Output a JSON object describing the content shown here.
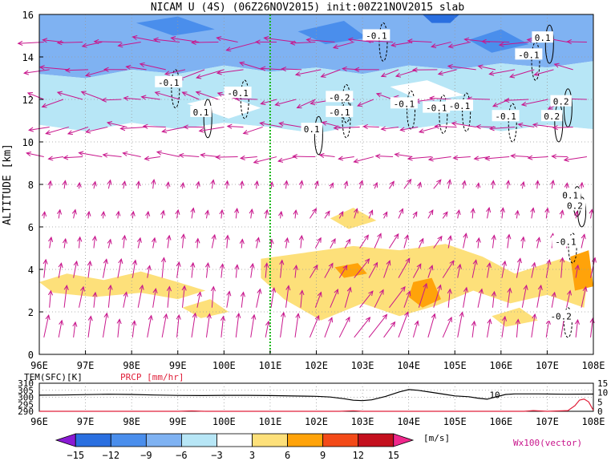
{
  "chart_data": {
    "type": "heatmap",
    "title": "NICAM U (4S) (06Z26NOV2015) init:00Z21NOV2015 slab",
    "ylabel": "ALTITUDE [km]",
    "xlabel": "",
    "x_ticks": [
      "96E",
      "97E",
      "98E",
      "99E",
      "100E",
      "101E",
      "102E",
      "103E",
      "104E",
      "105E",
      "106E",
      "107E",
      "108E"
    ],
    "y_ticks": [
      "0",
      "2",
      "4",
      "6",
      "8",
      "10",
      "12",
      "14",
      "16"
    ],
    "xlim": [
      96,
      108
    ],
    "ylim": [
      0,
      16
    ],
    "marker_line_lon": 101,
    "contour_labels": [
      {
        "text": "-0.1",
        "lon": 98.8,
        "alt": 12.8
      },
      {
        "text": "-0.1",
        "lon": 100.3,
        "alt": 12.3
      },
      {
        "text": "0.1",
        "lon": 99.5,
        "alt": 11.4
      },
      {
        "text": "0.1",
        "lon": 101.9,
        "alt": 10.6
      },
      {
        "text": "-0.2",
        "lon": 102.5,
        "alt": 12.1
      },
      {
        "text": "-0.1",
        "lon": 102.5,
        "alt": 11.4
      },
      {
        "text": "-0.1",
        "lon": 103.3,
        "alt": 15.0
      },
      {
        "text": "-0.1",
        "lon": 103.9,
        "alt": 11.8
      },
      {
        "text": "-0.1",
        "lon": 104.6,
        "alt": 11.6
      },
      {
        "text": "-0.1",
        "lon": 105.1,
        "alt": 11.7
      },
      {
        "text": "-0.1",
        "lon": 106.1,
        "alt": 11.2
      },
      {
        "text": "-0.1",
        "lon": 106.6,
        "alt": 14.1
      },
      {
        "text": "0.1",
        "lon": 106.9,
        "alt": 14.9
      },
      {
        "text": "0.2",
        "lon": 107.3,
        "alt": 11.9
      },
      {
        "text": "0.2",
        "lon": 107.1,
        "alt": 11.2
      },
      {
        "text": "0.1",
        "lon": 107.5,
        "alt": 7.5
      },
      {
        "text": "0.2",
        "lon": 107.6,
        "alt": 7.0
      },
      {
        "text": "-0.1",
        "lon": 107.4,
        "alt": 5.3
      },
      {
        "text": "-0.2",
        "lon": 107.3,
        "alt": 1.8
      }
    ],
    "colorbar": {
      "levels": [
        -15,
        -12,
        -9,
        -6,
        -3,
        3,
        6,
        9,
        12,
        15
      ],
      "colors": [
        "#8a1ad4",
        "#2a6fe0",
        "#4a8eec",
        "#7fb2f2",
        "#b7e6f6",
        "#ffffff",
        "#fde07a",
        "#ffa30a",
        "#f34a18",
        "#c4101e",
        "#f0288c"
      ],
      "unit": "[m/s]",
      "vector_label": "Wx100(vector)"
    },
    "fields": [
      {
        "value": -9,
        "polygons": [
          [
            [
              96,
              16
            ],
            [
              108,
              16
            ],
            [
              108,
              13.8
            ],
            [
              107,
              13.5
            ],
            [
              106,
              13.7
            ],
            [
              105,
              13.4
            ],
            [
              104,
              13.6
            ],
            [
              103,
              13.2
            ],
            [
              102,
              13.5
            ],
            [
              101,
              13.3
            ],
            [
              100,
              13.6
            ],
            [
              99,
              13.2
            ],
            [
              98,
              13.4
            ],
            [
              97,
              13.0
            ],
            [
              96,
              13.2
            ]
          ]
        ]
      },
      {
        "value": -6,
        "polygons": [
          [
            [
              96,
              13.2
            ],
            [
              97,
              13.0
            ],
            [
              98,
              13.4
            ],
            [
              99,
              13.2
            ],
            [
              100,
              13.6
            ],
            [
              101,
              13.3
            ],
            [
              102,
              13.5
            ],
            [
              103,
              13.2
            ],
            [
              104,
              13.6
            ],
            [
              105,
              13.4
            ],
            [
              106,
              13.7
            ],
            [
              107,
              13.5
            ],
            [
              108,
              13.8
            ],
            [
              108,
              10.6
            ],
            [
              107,
              10.8
            ],
            [
              106,
              10.5
            ],
            [
              105,
              10.9
            ],
            [
              104,
              10.6
            ],
            [
              103,
              10.8
            ],
            [
              102,
              10.4
            ],
            [
              101,
              10.7
            ],
            [
              100,
              10.9
            ],
            [
              99,
              10.6
            ],
            [
              98,
              10.9
            ],
            [
              97,
              10.5
            ],
            [
              96,
              10.8
            ]
          ]
        ]
      },
      {
        "value": -3,
        "polygons": [
          [
            [
              96,
              10.8
            ],
            [
              97,
              10.5
            ],
            [
              98,
              10.9
            ],
            [
              99,
              10.6
            ],
            [
              100,
              10.9
            ],
            [
              101,
              10.7
            ],
            [
              102,
              10.4
            ],
            [
              103,
              10.8
            ],
            [
              104,
              10.6
            ],
            [
              105,
              10.9
            ],
            [
              106,
              10.5
            ],
            [
              107,
              10.8
            ],
            [
              108,
              10.6
            ],
            [
              108,
              8.2
            ],
            [
              107,
              8.4
            ],
            [
              106,
              8.0
            ],
            [
              105,
              8.6
            ],
            [
              104,
              8.2
            ],
            [
              103,
              8.5
            ],
            [
              102,
              8.3
            ],
            [
              101,
              8.6
            ],
            [
              100,
              8.3
            ],
            [
              99,
              8.7
            ],
            [
              98,
              8.4
            ],
            [
              97,
              8.6
            ],
            [
              96,
              8.3
            ]
          ],
          [
            [
              99.2,
              11.8
            ],
            [
              100.0,
              12.2
            ],
            [
              100.8,
              11.6
            ],
            [
              100.1,
              11.1
            ]
          ],
          [
            [
              103.6,
              12.6
            ],
            [
              104.4,
              12.9
            ],
            [
              105.2,
              12.2
            ],
            [
              104.3,
              11.9
            ]
          ]
        ]
      },
      {
        "value": -12,
        "polygons": [
          [
            [
              98.1,
              15.6
            ],
            [
              99.0,
              15.9
            ],
            [
              99.8,
              15.3
            ],
            [
              98.9,
              15.0
            ]
          ],
          [
            [
              101.6,
              15.2
            ],
            [
              102.6,
              15.7
            ],
            [
              103.1,
              14.9
            ],
            [
              102.2,
              14.6
            ]
          ],
          [
            [
              105.3,
              14.8
            ],
            [
              106.0,
              15.3
            ],
            [
              106.6,
              14.6
            ],
            [
              105.8,
              14.2
            ]
          ]
        ]
      },
      {
        "value": -15,
        "polygons": [
          [
            [
              104.3,
              16
            ],
            [
              105.1,
              16
            ],
            [
              104.9,
              15.6
            ],
            [
              104.5,
              15.6
            ]
          ]
        ]
      },
      {
        "value": 3,
        "polygons": [
          [
            [
              96,
              3.4
            ],
            [
              96.6,
              3.8
            ],
            [
              97.4,
              3.5
            ],
            [
              98.2,
              3.9
            ],
            [
              99,
              3.4
            ],
            [
              99.6,
              3.0
            ],
            [
              99.0,
              2.6
            ],
            [
              98.2,
              2.9
            ],
            [
              97.2,
              2.7
            ],
            [
              96.3,
              2.9
            ]
          ],
          [
            [
              100.8,
              4.5
            ],
            [
              101.8,
              4.8
            ],
            [
              102.8,
              5.1
            ],
            [
              103.8,
              4.9
            ],
            [
              104.8,
              5.2
            ],
            [
              105.6,
              4.6
            ],
            [
              106.3,
              3.8
            ],
            [
              107.3,
              4.5
            ],
            [
              107.9,
              4.0
            ],
            [
              107.8,
              2.2
            ],
            [
              107.0,
              2.8
            ],
            [
              106.2,
              2.4
            ],
            [
              105.4,
              3.0
            ],
            [
              104.6,
              2.3
            ],
            [
              103.8,
              1.8
            ],
            [
              103.0,
              2.4
            ],
            [
              102.1,
              1.6
            ],
            [
              101.3,
              2.6
            ],
            [
              100.8,
              3.6
            ]
          ],
          [
            [
              102.3,
              6.4
            ],
            [
              102.8,
              6.9
            ],
            [
              103.3,
              6.3
            ],
            [
              102.7,
              5.9
            ]
          ],
          [
            [
              99.1,
              2.2
            ],
            [
              99.7,
              2.6
            ],
            [
              100.1,
              2.0
            ],
            [
              99.5,
              1.7
            ]
          ],
          [
            [
              105.8,
              1.8
            ],
            [
              106.4,
              2.2
            ],
            [
              106.8,
              1.6
            ],
            [
              106.1,
              1.3
            ]
          ]
        ]
      },
      {
        "value": 6,
        "polygons": [
          [
            [
              104.1,
              3.4
            ],
            [
              104.5,
              3.6
            ],
            [
              104.7,
              2.6
            ],
            [
              104.3,
              2.2
            ],
            [
              104.0,
              2.7
            ]
          ],
          [
            [
              102.4,
              4.1
            ],
            [
              102.9,
              4.3
            ],
            [
              103.1,
              3.8
            ],
            [
              102.6,
              3.6
            ]
          ],
          [
            [
              107.5,
              4.6
            ],
            [
              107.9,
              4.9
            ],
            [
              108,
              3.2
            ],
            [
              107.6,
              3.0
            ]
          ]
        ]
      }
    ],
    "rows": [
      {
        "alt": 14.7,
        "dir": -1,
        "mag": 1.0,
        "tilt": 0.25
      },
      {
        "alt": 13.4,
        "dir": -1,
        "mag": 0.9,
        "tilt": 0.35
      },
      {
        "alt": 12.0,
        "dir": -1,
        "mag": 0.85,
        "tilt": 0.45
      },
      {
        "alt": 10.7,
        "dir": -1,
        "mag": 0.8,
        "tilt": 0.3
      },
      {
        "alt": 9.3,
        "dir": -1,
        "mag": 0.75,
        "tilt": 0.25
      },
      {
        "alt": 7.8,
        "dir": 0,
        "mag": 0.35,
        "tilt": 1
      },
      {
        "alt": 6.4,
        "dir": 0,
        "mag": 0.4,
        "tilt": 1
      },
      {
        "alt": 5.0,
        "dir": 0,
        "mag": 0.55,
        "tilt": 1
      },
      {
        "alt": 3.6,
        "dir": 0,
        "mag": 0.75,
        "tilt": 1
      },
      {
        "alt": 2.2,
        "dir": 0,
        "mag": 0.9,
        "tilt": 1
      },
      {
        "alt": 0.8,
        "dir": 0,
        "mag": 0.95,
        "tilt": 1
      }
    ],
    "bottom_panel": {
      "tem_label": "TEM(SFC)[K]",
      "prcp_label": "PRCP [mm/hr]",
      "left_ticks": [
        "310",
        "305",
        "300",
        "295",
        "290"
      ],
      "right_ticks": [
        "15",
        "10",
        "5",
        "0"
      ],
      "tem_annotation": "10",
      "tem_series": [
        [
          96.0,
          301.5
        ],
        [
          96.5,
          301.6
        ],
        [
          97.0,
          301.9
        ],
        [
          97.5,
          302.2
        ],
        [
          98.0,
          302.0
        ],
        [
          98.5,
          301.6
        ],
        [
          99.0,
          301.3
        ],
        [
          99.5,
          301.2
        ],
        [
          100.0,
          301.4
        ],
        [
          100.5,
          301.4
        ],
        [
          101.0,
          301.2
        ],
        [
          101.5,
          300.9
        ],
        [
          102.0,
          300.7
        ],
        [
          102.3,
          300.2
        ],
        [
          102.6,
          299.0
        ],
        [
          102.8,
          297.9
        ],
        [
          103.0,
          297.6
        ],
        [
          103.2,
          298.2
        ],
        [
          103.5,
          300.6
        ],
        [
          103.8,
          303.8
        ],
        [
          104.0,
          305.5
        ],
        [
          104.2,
          305.0
        ],
        [
          104.5,
          303.5
        ],
        [
          104.8,
          302.0
        ],
        [
          105.0,
          301.0
        ],
        [
          105.3,
          300.4
        ],
        [
          105.5,
          299.4
        ],
        [
          105.7,
          298.6
        ],
        [
          105.9,
          300.4
        ],
        [
          106.1,
          302.0
        ],
        [
          106.3,
          302.4
        ],
        [
          106.8,
          302.4
        ],
        [
          107.4,
          302.2
        ],
        [
          108.0,
          302.3
        ]
      ],
      "prcp_series": [
        [
          96.0,
          0
        ],
        [
          99.0,
          0
        ],
        [
          99.3,
          0.2
        ],
        [
          99.6,
          0
        ],
        [
          102.5,
          0
        ],
        [
          102.8,
          0.3
        ],
        [
          103.0,
          0
        ],
        [
          106.5,
          0
        ],
        [
          106.7,
          0.4
        ],
        [
          107.0,
          0
        ],
        [
          107.45,
          0.4
        ],
        [
          107.6,
          3.0
        ],
        [
          107.7,
          6.0
        ],
        [
          107.8,
          6.5
        ],
        [
          107.9,
          5.0
        ],
        [
          108.0,
          0.5
        ]
      ]
    }
  }
}
